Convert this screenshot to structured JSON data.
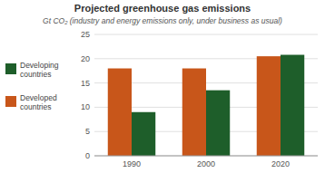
{
  "chart_data": {
    "type": "bar",
    "title": "Projected greenhouse gas emissions",
    "subtitle": "Gt CO₂ (industry and energy emissions only, under business as usual)",
    "categories": [
      "1990",
      "2000",
      "2020"
    ],
    "series": [
      {
        "name": "Developed\ncountries",
        "color": "#C8561A",
        "values": [
          18.0,
          18.0,
          20.5
        ]
      },
      {
        "name": "Developing\ncountries",
        "color": "#1E5E2A",
        "values": [
          9.0,
          13.5,
          20.8
        ]
      }
    ],
    "ylim": [
      0,
      25
    ],
    "yticks": [
      0,
      5,
      10,
      15,
      20,
      25
    ],
    "grid": true,
    "legend": "left"
  }
}
